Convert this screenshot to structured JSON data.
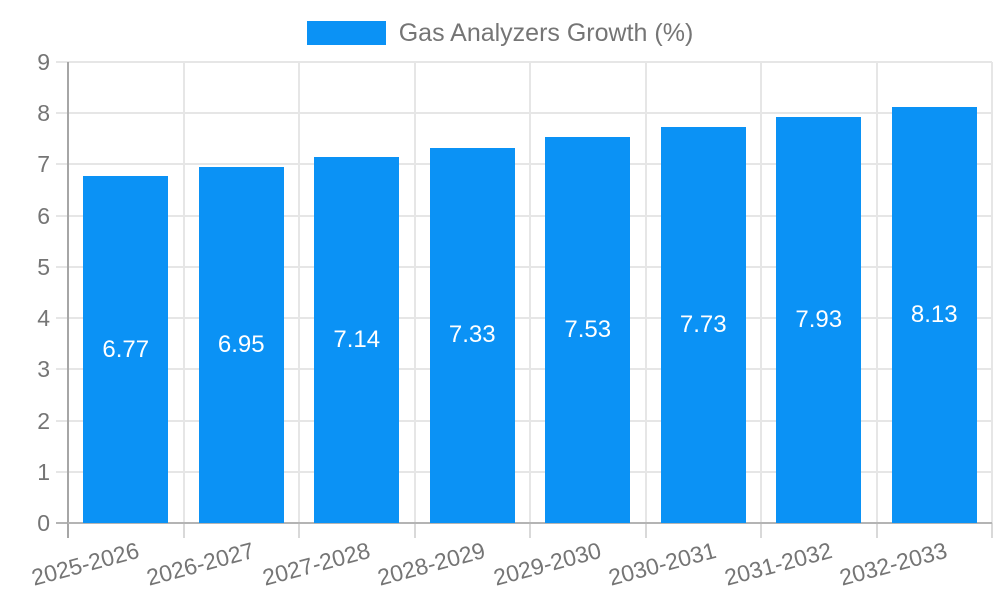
{
  "chart_data": {
    "type": "bar",
    "title": "Gas Analyzers Growth (%)",
    "legend": {
      "position": "top",
      "label": "Gas Analyzers Growth (%)"
    },
    "categories": [
      "2025-2026",
      "2026-2027",
      "2027-2028",
      "2028-2029",
      "2029-2030",
      "2030-2031",
      "2031-2032",
      "2032-2033"
    ],
    "values": [
      6.77,
      6.95,
      7.14,
      7.33,
      7.53,
      7.73,
      7.93,
      8.13
    ],
    "value_labels": [
      "6.77",
      "6.95",
      "7.14",
      "7.33",
      "7.53",
      "7.73",
      "7.93",
      "8.13"
    ],
    "value_label_position": "inside-middle",
    "xlabel": "",
    "ylabel": "",
    "ylim": [
      0,
      9
    ],
    "yticks": [
      0,
      1,
      2,
      3,
      4,
      5,
      6,
      7,
      8,
      9
    ],
    "ytick_labels": [
      "0",
      "1",
      "2",
      "3",
      "4",
      "5",
      "6",
      "7",
      "8",
      "9"
    ],
    "grid": true,
    "colors": {
      "bar": "#0b92f5",
      "value_label": "#ffffff",
      "axis_label": "#757575",
      "legend_label": "#757575",
      "gridline": "#e6e6e6",
      "axis_line": "#a6a6a6",
      "baseline": "#b4b4b4",
      "tick": "#d9d9d9",
      "background": "#ffffff"
    }
  }
}
